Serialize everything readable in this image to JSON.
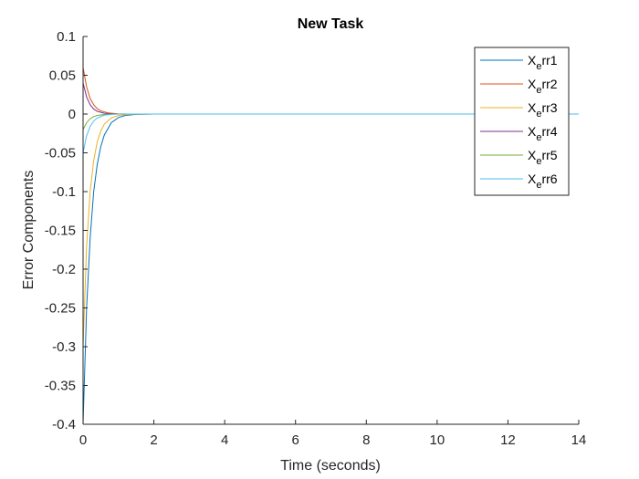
{
  "chart_data": {
    "type": "line",
    "title": "New Task",
    "xlabel": "Time (seconds)",
    "ylabel": "Error Components",
    "xlim": [
      0,
      14
    ],
    "ylim": [
      -0.4,
      0.1
    ],
    "xticks": [
      0,
      2,
      4,
      6,
      8,
      10,
      12,
      14
    ],
    "yticks": [
      0.1,
      0.05,
      0,
      -0.05,
      -0.1,
      -0.15,
      -0.2,
      -0.25,
      -0.3,
      -0.35,
      -0.4
    ],
    "xtick_labels": [
      "0",
      "2",
      "4",
      "6",
      "8",
      "10",
      "12",
      "14"
    ],
    "ytick_labels": [
      "0.1",
      "0.05",
      "0",
      "-0.05",
      "-0.1",
      "-0.15",
      "-0.2",
      "-0.25",
      "-0.3",
      "-0.35",
      "-0.4"
    ],
    "grid": false,
    "legend_position": "top-right",
    "series": [
      {
        "name": "X_err1",
        "color": "#0072BD",
        "x": [
          0,
          0.1,
          0.2,
          0.3,
          0.4,
          0.5,
          0.6,
          0.8,
          1.0,
          1.2,
          1.5,
          2,
          3,
          14
        ],
        "y": [
          -0.4,
          -0.25,
          -0.16,
          -0.1,
          -0.065,
          -0.042,
          -0.027,
          -0.011,
          -0.0045,
          -0.0018,
          -0.0005,
          0,
          0,
          0
        ]
      },
      {
        "name": "X_err2",
        "color": "#D95319",
        "x": [
          0,
          0.1,
          0.2,
          0.3,
          0.4,
          0.5,
          0.7,
          1.0,
          1.3,
          2,
          3,
          14
        ],
        "y": [
          0.06,
          0.035,
          0.02,
          0.012,
          0.007,
          0.0042,
          0.0015,
          0.0003,
          0,
          0,
          0,
          0
        ]
      },
      {
        "name": "X_err3",
        "color": "#EDB120",
        "x": [
          0,
          0.1,
          0.2,
          0.3,
          0.4,
          0.5,
          0.6,
          0.8,
          1.0,
          1.3,
          2,
          3,
          14
        ],
        "y": [
          -0.3,
          -0.17,
          -0.1,
          -0.06,
          -0.036,
          -0.022,
          -0.013,
          -0.005,
          -0.0018,
          -0.0004,
          0,
          0,
          0
        ]
      },
      {
        "name": "X_err4",
        "color": "#7E2F8E",
        "x": [
          0,
          0.1,
          0.2,
          0.3,
          0.4,
          0.6,
          0.8,
          1.0,
          1.5,
          3,
          14
        ],
        "y": [
          0.04,
          0.022,
          0.012,
          0.0065,
          0.0035,
          0.001,
          0.0003,
          0,
          0,
          0,
          0
        ]
      },
      {
        "name": "X_err5",
        "color": "#77AC30",
        "x": [
          0,
          0.1,
          0.2,
          0.3,
          0.4,
          0.6,
          0.8,
          1.0,
          1.5,
          3,
          14
        ],
        "y": [
          -0.02,
          -0.011,
          -0.006,
          -0.0033,
          -0.0018,
          -0.0006,
          -0.0002,
          0,
          0,
          0,
          0
        ]
      },
      {
        "name": "X_err6",
        "color": "#4DBEEE",
        "x": [
          0,
          0.1,
          0.2,
          0.3,
          0.4,
          0.6,
          0.8,
          1.0,
          1.5,
          3,
          14
        ],
        "y": [
          -0.05,
          -0.028,
          -0.016,
          -0.009,
          -0.005,
          -0.0015,
          -0.0004,
          0,
          0,
          0,
          0
        ]
      }
    ]
  }
}
